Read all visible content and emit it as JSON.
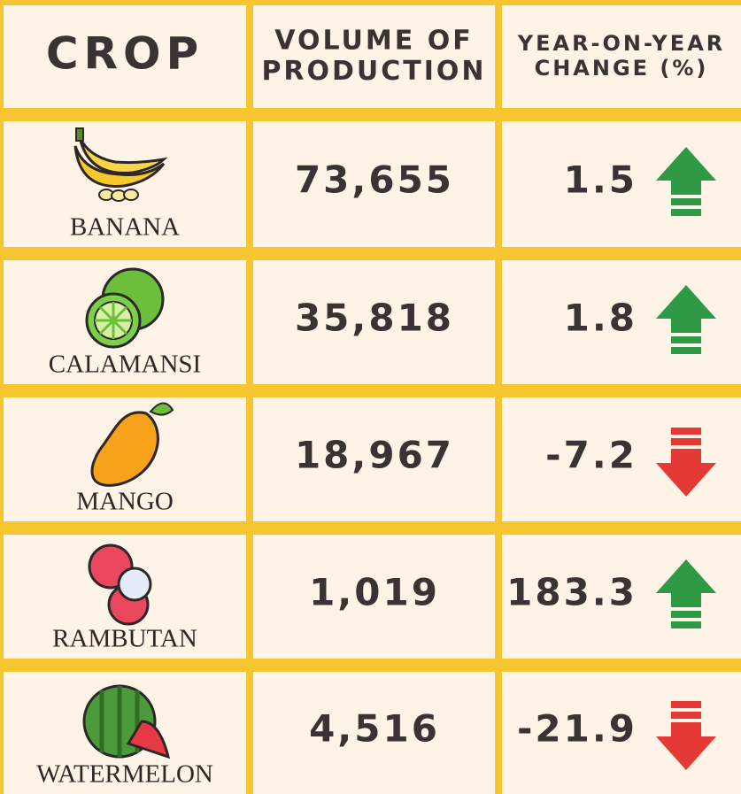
{
  "header": {
    "columns": [
      [
        "CROP"
      ],
      [
        "VOLUME OF",
        "PRODUCTION"
      ],
      [
        "YEAR-ON-YEAR",
        "CHANGE (%)"
      ]
    ]
  },
  "rows": [
    {
      "crop": "BANANA",
      "volume": "73,655",
      "change": "1.5"
    },
    {
      "crop": "CALAMANSI",
      "volume": "35,818",
      "change": "1.8"
    },
    {
      "crop": "MANGO",
      "volume": "18,967",
      "change": "-7.2"
    },
    {
      "crop": "RAMBUTAN",
      "volume": "1,019",
      "change": "183.3"
    },
    {
      "crop": "WATERMELON",
      "volume": "4,516",
      "change": "-21.9"
    }
  ]
}
